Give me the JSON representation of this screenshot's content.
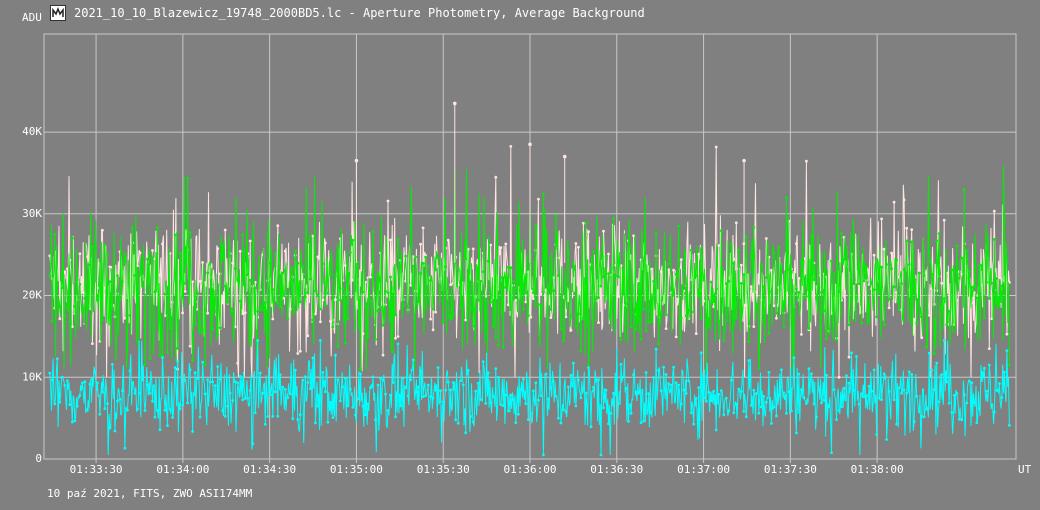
{
  "window": {
    "title": "2021_10_10_Blazewicz_19748_2000BD5.lc - Aperture Photometry, Average Background",
    "icon": "lightcurve-app-icon"
  },
  "footer": {
    "caption": "10 paź 2021, FITS, ZWO ASI174MM"
  },
  "colors": {
    "background": "#808080",
    "grid": "#c8c8c8",
    "series_green": "#00ee00",
    "series_cyan": "#00ffff",
    "series_pink": "#ffe4e1"
  },
  "chart_data": {
    "type": "scatter",
    "title": "2021_10_10_Blazewicz_19748_2000BD5.lc - Aperture Photometry, Average Background",
    "ylabel": "ADU",
    "xlabel": "UT",
    "ylim": [
      0,
      52000
    ],
    "xlim": [
      "01:33:12",
      "01:38:48"
    ],
    "grid": true,
    "y_ticks": [
      {
        "value": 0,
        "label": "0"
      },
      {
        "value": 10000,
        "label": "10K"
      },
      {
        "value": 20000,
        "label": "20K"
      },
      {
        "value": 30000,
        "label": "30K"
      },
      {
        "value": 40000,
        "label": "40K"
      }
    ],
    "x_ticks": [
      "01:33:30",
      "01:34:00",
      "01:34:30",
      "01:35:00",
      "01:35:30",
      "01:36:00",
      "01:36:30",
      "01:37:00",
      "01:37:30",
      "01:38:00"
    ],
    "series": [
      {
        "color": "#00ee00",
        "typical_range": [
          12000,
          33000
        ],
        "mean": 21000,
        "max": 36000,
        "min": 11000
      },
      {
        "color": "#00ffff",
        "typical_range": [
          3000,
          14000
        ],
        "mean": 8000,
        "max": 14500,
        "min": 500
      },
      {
        "color": "#ffe4e1",
        "typical_range": [
          15000,
          30000
        ],
        "mean": 21500,
        "max": 43500,
        "min": 10000
      }
    ],
    "notable_points": [
      {
        "time": "01:35:34",
        "value": 43500
      },
      {
        "time": "01:36:00",
        "value": 38500
      },
      {
        "time": "01:36:12",
        "value": 37000
      },
      {
        "time": "01:35:00",
        "value": 36500
      },
      {
        "time": "01:37:14",
        "value": 36500
      }
    ]
  }
}
